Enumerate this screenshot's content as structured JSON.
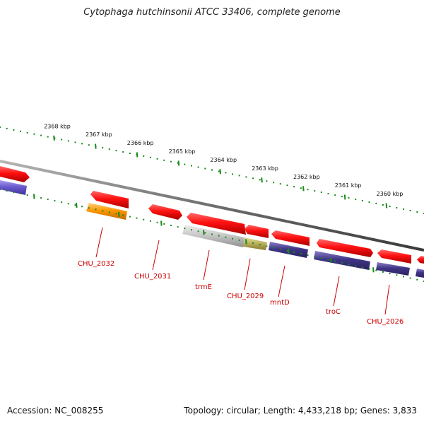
{
  "title": "Cytophaga hutchinsonii ATCC 33406, complete genome",
  "footer": {
    "accession": "Accession: NC_008255",
    "summary": "Topology: circular; Length: 4,433,218 bp; Genes: 3,833"
  },
  "scale_ticks": [
    {
      "label": "2368 kbp"
    },
    {
      "label": "2367 kbp"
    },
    {
      "label": "2366 kbp"
    },
    {
      "label": "2365 kbp"
    },
    {
      "label": "2364 kbp"
    },
    {
      "label": "2363 kbp"
    },
    {
      "label": "2362 kbp"
    },
    {
      "label": "2361 kbp"
    },
    {
      "label": "2360 kbp"
    }
  ],
  "gene_labels": [
    {
      "name": "CHU_2032"
    },
    {
      "name": "CHU_2031"
    },
    {
      "name": "trmE"
    },
    {
      "name": "CHU_2029"
    },
    {
      "name": "mntD"
    },
    {
      "name": "troC"
    },
    {
      "name": "CHU_2026"
    }
  ],
  "colors": {
    "cds": "#ff1a1a",
    "cog_purple": "#4a3f8f",
    "cog_blue": "#6a5acd",
    "cog_orange": "#ff9900",
    "cog_gray": "#bdbdbd",
    "cog_olive": "#b8ad5a",
    "backbone": "#7a7a7a",
    "tick": "#1a8a1a",
    "label": "#cc0000"
  }
}
